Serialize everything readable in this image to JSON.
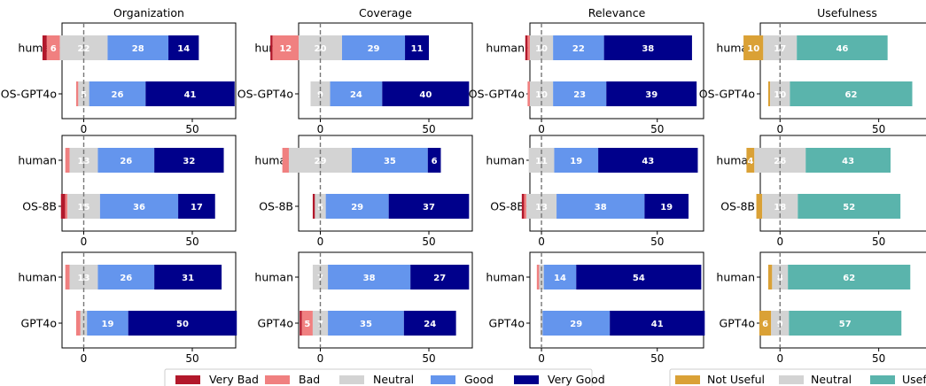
{
  "chart_data": {
    "type": "bar",
    "orientation": "horizontal",
    "stacked": true,
    "grid": false,
    "zero_reference_line": "dashed",
    "columns": [
      {
        "title": "Organization",
        "xlim": [
          -10,
          70
        ],
        "xticks": [
          0,
          50
        ],
        "scale": "quality"
      },
      {
        "title": "Coverage",
        "xlim": [
          -10,
          70
        ],
        "xticks": [
          0,
          50
        ],
        "scale": "quality"
      },
      {
        "title": "Relevance",
        "xlim": [
          -5,
          70
        ],
        "xticks": [
          0,
          50
        ],
        "scale": "quality"
      },
      {
        "title": "Usefulness",
        "xlim": [
          -10,
          78
        ],
        "xticks": [
          0,
          50
        ],
        "scale": "usefulness"
      }
    ],
    "scales": {
      "quality": {
        "negative": [
          {
            "name": "Very Bad",
            "color": "#b2182b"
          },
          {
            "name": "Bad",
            "color": "#f08080"
          }
        ],
        "neutral": {
          "name": "Neutral",
          "color": "#d3d3d3"
        },
        "positive": [
          {
            "name": "Good",
            "color": "#6495ed"
          },
          {
            "name": "Very Good",
            "color": "#00008b"
          }
        ]
      },
      "usefulness": {
        "negative": [
          {
            "name": "Not Useful",
            "color": "#daa136"
          }
        ],
        "neutral": {
          "name": "Neutral",
          "color": "#d3d3d3"
        },
        "positive": [
          {
            "name": "Useful",
            "color": "#5ab4ac"
          }
        ]
      }
    },
    "rows": [
      {
        "categories": [
          "human",
          "OS-GPT4o"
        ]
      },
      {
        "categories": [
          "human",
          "OS-8B"
        ]
      },
      {
        "categories": [
          "human",
          "GPT4o"
        ]
      }
    ],
    "panels": [
      [
        {
          "bars": [
            {
              "label": "human",
              "values": [
                2,
                6,
                22,
                28,
                14
              ]
            },
            {
              "label": "OS-GPT4o",
              "values": [
                0,
                1,
                5,
                26,
                41
              ]
            }
          ]
        },
        {
          "bars": [
            {
              "label": "human",
              "values": [
                1,
                12,
                20,
                29,
                11
              ]
            },
            {
              "label": "OS-GPT4o",
              "values": [
                0,
                0,
                9,
                24,
                40
              ]
            }
          ]
        },
        {
          "bars": [
            {
              "label": "human",
              "values": [
                1,
                1,
                10,
                22,
                38
              ]
            },
            {
              "label": "OS-GPT4o",
              "values": [
                0,
                1,
                10,
                23,
                39
              ]
            }
          ]
        },
        {
          "bars": [
            {
              "label": "human",
              "values": [
                10,
                17,
                46
              ]
            },
            {
              "label": "OS-GPT4o",
              "values": [
                1,
                10,
                62
              ]
            }
          ]
        }
      ],
      [
        {
          "bars": [
            {
              "label": "human",
              "values": [
                0,
                2,
                13,
                26,
                32
              ]
            },
            {
              "label": "OS-8B",
              "values": [
                2,
                1,
                15,
                36,
                17
              ]
            }
          ]
        },
        {
          "bars": [
            {
              "label": "human",
              "values": [
                0,
                3,
                29,
                35,
                6
              ]
            },
            {
              "label": "OS-8B",
              "values": [
                1,
                0,
                5,
                29,
                37
              ]
            }
          ]
        },
        {
          "bars": [
            {
              "label": "human",
              "values": [
                0,
                0,
                11,
                19,
                43
              ]
            },
            {
              "label": "OS-8B",
              "values": [
                1,
                1,
                13,
                38,
                19
              ]
            }
          ]
        },
        {
          "bars": [
            {
              "label": "human",
              "values": [
                4,
                26,
                43
              ]
            },
            {
              "label": "OS-8B",
              "values": [
                3,
                18,
                52
              ]
            }
          ]
        }
      ],
      [
        {
          "bars": [
            {
              "label": "human",
              "values": [
                0,
                2,
                13,
                26,
                31
              ]
            },
            {
              "label": "GPT4o",
              "values": [
                0,
                2,
                3,
                19,
                50
              ]
            }
          ]
        },
        {
          "bars": [
            {
              "label": "human",
              "values": [
                0,
                0,
                7,
                38,
                27
              ]
            },
            {
              "label": "GPT4o",
              "values": [
                1,
                5,
                7,
                35,
                24
              ]
            }
          ]
        },
        {
          "bars": [
            {
              "label": "human",
              "values": [
                0,
                1,
                2,
                14,
                54
              ]
            },
            {
              "label": "GPT4o",
              "values": [
                0,
                0,
                1,
                29,
                41
              ]
            }
          ]
        },
        {
          "bars": [
            {
              "label": "human",
              "values": [
                2,
                8,
                62
              ]
            },
            {
              "label": "GPT4o",
              "values": [
                6,
                9,
                57
              ]
            }
          ]
        }
      ]
    ],
    "value_label_min": 4,
    "legends": [
      {
        "placement": "bottom-center",
        "entries": [
          "Very Bad",
          "Bad",
          "Neutral",
          "Good",
          "Very Good"
        ]
      },
      {
        "placement": "bottom-right",
        "entries": [
          "Not Useful",
          "Neutral",
          "Useful"
        ]
      }
    ]
  }
}
